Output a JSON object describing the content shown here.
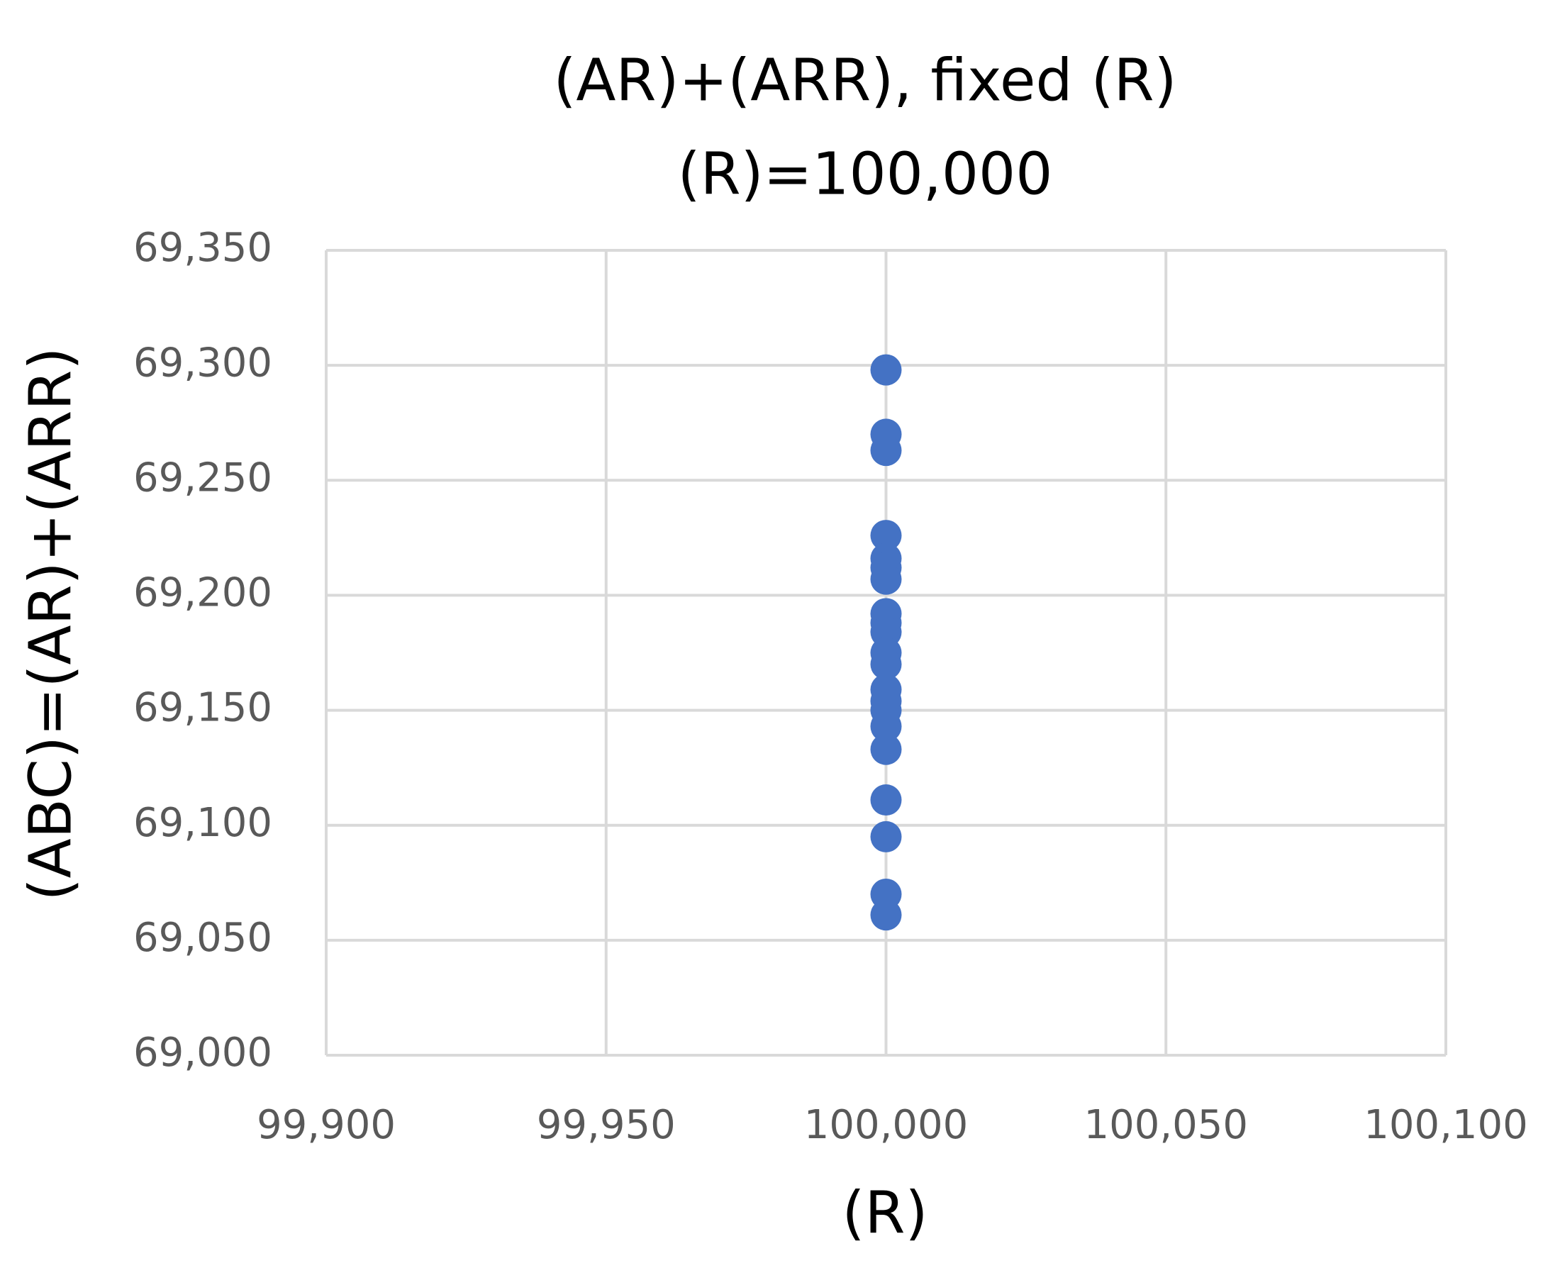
{
  "chart_data": {
    "type": "scatter",
    "title": "(AR)+(ARR), fixed (R)",
    "subtitle": "(R)=100,000",
    "x_label": "(R)",
    "y_label": "(ABC)=(AR)+(ARR)",
    "series": [
      {
        "color": "#4472c4",
        "x": [
          100000,
          100000,
          100000,
          100000,
          100000,
          100000,
          100000,
          100000,
          100000,
          100000,
          100000,
          100000,
          100000,
          100000,
          100000,
          100000,
          100000,
          100000,
          100000,
          100000,
          100000
        ],
        "values": [
          69298,
          69270,
          69263,
          69226,
          69216,
          69212,
          69207,
          69192,
          69188,
          69184,
          69175,
          69170,
          69159,
          69154,
          69150,
          69143,
          69133,
          69111,
          69095,
          69070,
          69061
        ]
      }
    ],
    "xlim": [
      99900,
      100100
    ],
    "xticks": [
      {
        "value": 99900,
        "label": "99,900"
      },
      {
        "value": 99950,
        "label": "99,950"
      },
      {
        "value": 100000,
        "label": "100,000"
      },
      {
        "value": 100050,
        "label": "100,050"
      },
      {
        "value": 100100,
        "label": "100,100"
      }
    ],
    "ylim": [
      69000,
      69350
    ],
    "yticks": [
      {
        "value": 69000,
        "label": "69,000"
      },
      {
        "value": 69050,
        "label": "69,050"
      },
      {
        "value": 69100,
        "label": "69,100"
      },
      {
        "value": 69150,
        "label": "69,150"
      },
      {
        "value": 69200,
        "label": "69,200"
      },
      {
        "value": 69250,
        "label": "69,250"
      },
      {
        "value": 69300,
        "label": "69,300"
      },
      {
        "value": 69350,
        "label": "69,350"
      }
    ],
    "grid": true
  }
}
